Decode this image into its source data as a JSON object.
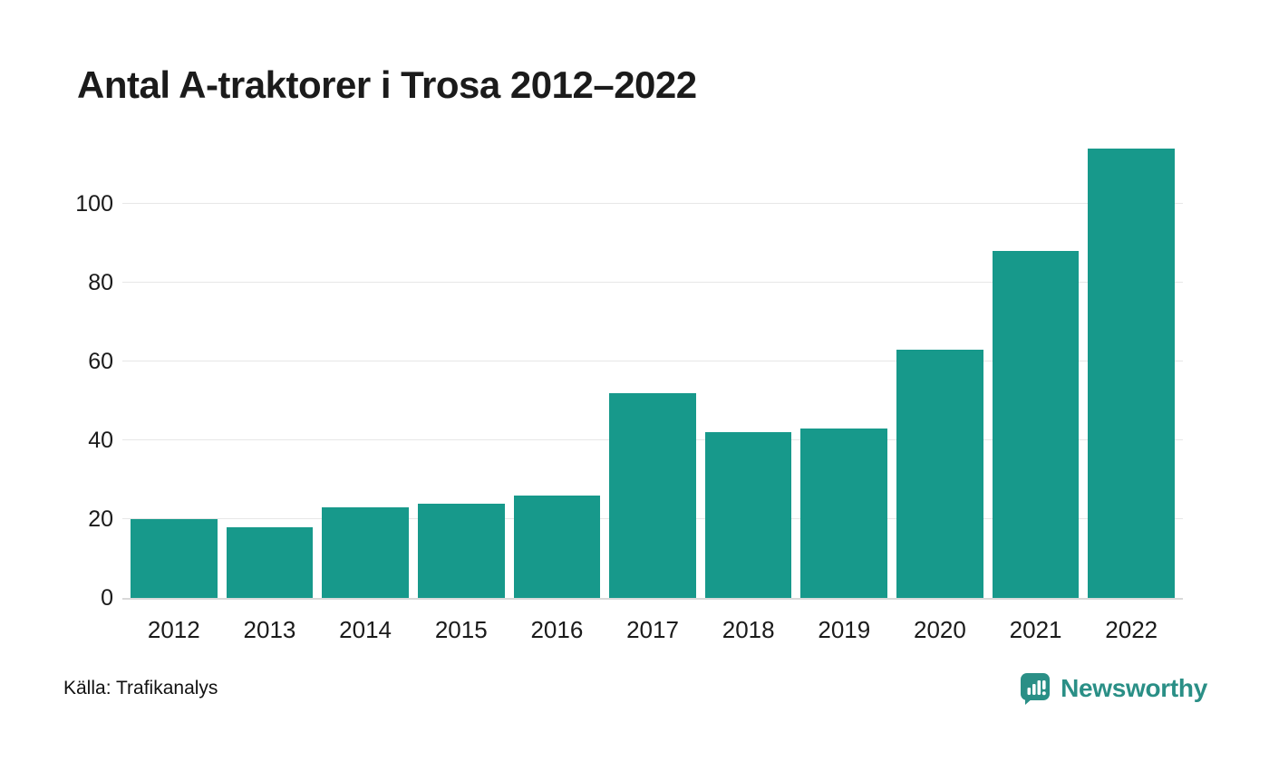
{
  "header": {
    "title": "Antal A-traktorer i Trosa 2012–2022"
  },
  "chart_data": {
    "type": "bar",
    "title": "Antal A-traktorer i Trosa 2012–2022",
    "categories": [
      "2012",
      "2013",
      "2014",
      "2015",
      "2016",
      "2017",
      "2018",
      "2019",
      "2020",
      "2021",
      "2022"
    ],
    "values": [
      20,
      18,
      23,
      24,
      26,
      52,
      42,
      43,
      63,
      88,
      114
    ],
    "xlabel": "",
    "ylabel": "",
    "yticks": [
      0,
      20,
      40,
      60,
      80,
      100
    ],
    "ylim": [
      0,
      115
    ],
    "grid": true,
    "legend_position": "none",
    "bar_color": "#17998b"
  },
  "footer": {
    "source": "Källa: Trafikanalys",
    "brand": {
      "name": "Newsworthy",
      "color": "#2a8f86",
      "icon": "newsworthy-logo-icon"
    }
  }
}
